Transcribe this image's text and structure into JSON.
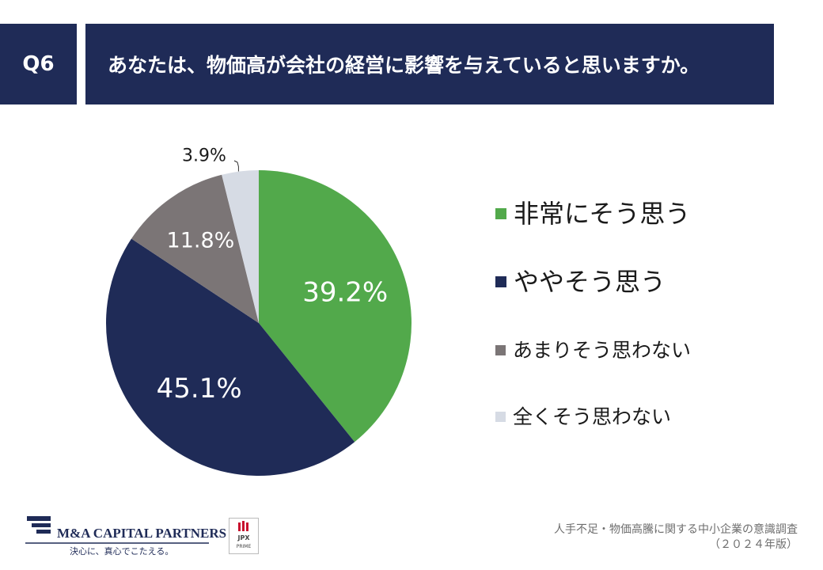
{
  "header": {
    "question_no": "Q6",
    "question": "あなたは、物価高が会社の経営に影響を与えていると思いますか。"
  },
  "chart_data": {
    "type": "pie",
    "categories": [
      "非常にそう思う",
      "ややそう思う",
      "あまりそう思わない",
      "全くそう思わない"
    ],
    "values": [
      39.2,
      45.1,
      11.8,
      3.9
    ],
    "labels": [
      "39.2%",
      "45.1%",
      "11.8%",
      "3.9%"
    ],
    "colors": [
      "#52a94b",
      "#1f2b57",
      "#7b7576",
      "#d6dbe4"
    ],
    "legend_position": "right"
  },
  "footer": {
    "survey_title": "人手不足・物価高騰に関する中小企業の意識調査",
    "survey_year": "（２０２４年版）",
    "company_name": "M&A CAPITAL PARTNERS",
    "company_slogan": "決心に、真心でこたえる。",
    "exchange_mark": "JPX",
    "exchange_market": "PRIME"
  }
}
